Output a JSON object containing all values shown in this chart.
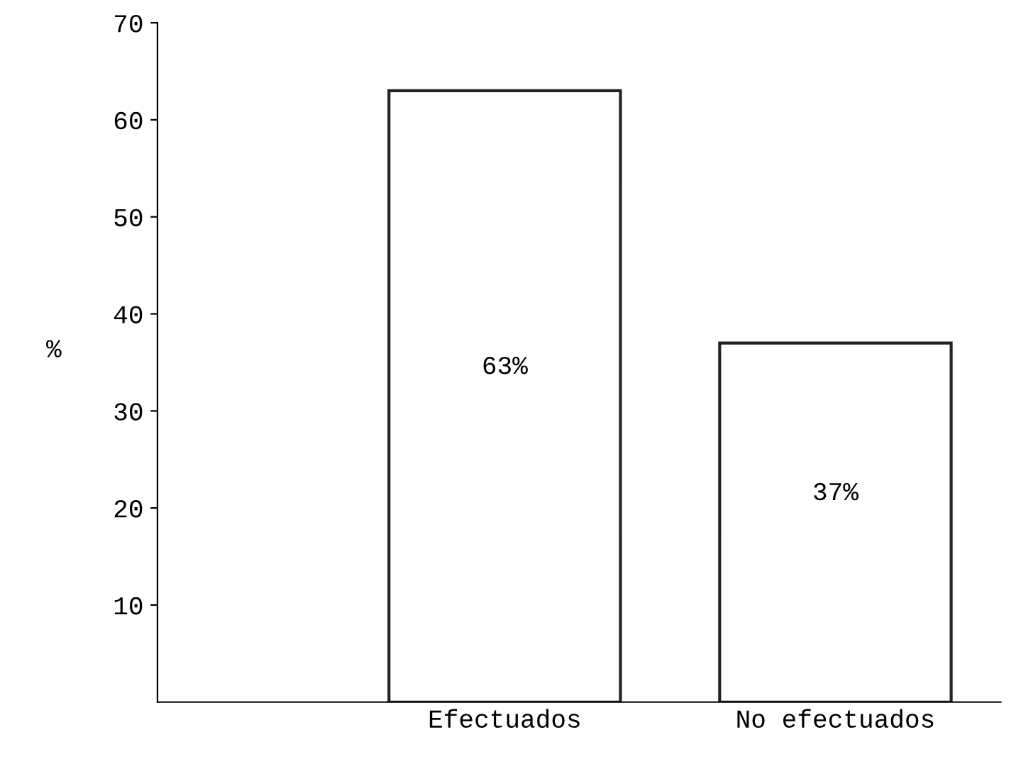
{
  "chart_data": {
    "type": "bar",
    "ylabel": "%",
    "categories": [
      "Efectuados",
      "No efectuados"
    ],
    "values": [
      63,
      37
    ],
    "value_labels": [
      "63%",
      "37%"
    ],
    "color": "#ffffff",
    "ylim": [
      0,
      70
    ],
    "yticks": [
      10,
      20,
      30,
      40,
      50,
      60,
      70
    ],
    "grid": false,
    "legend": false
  }
}
